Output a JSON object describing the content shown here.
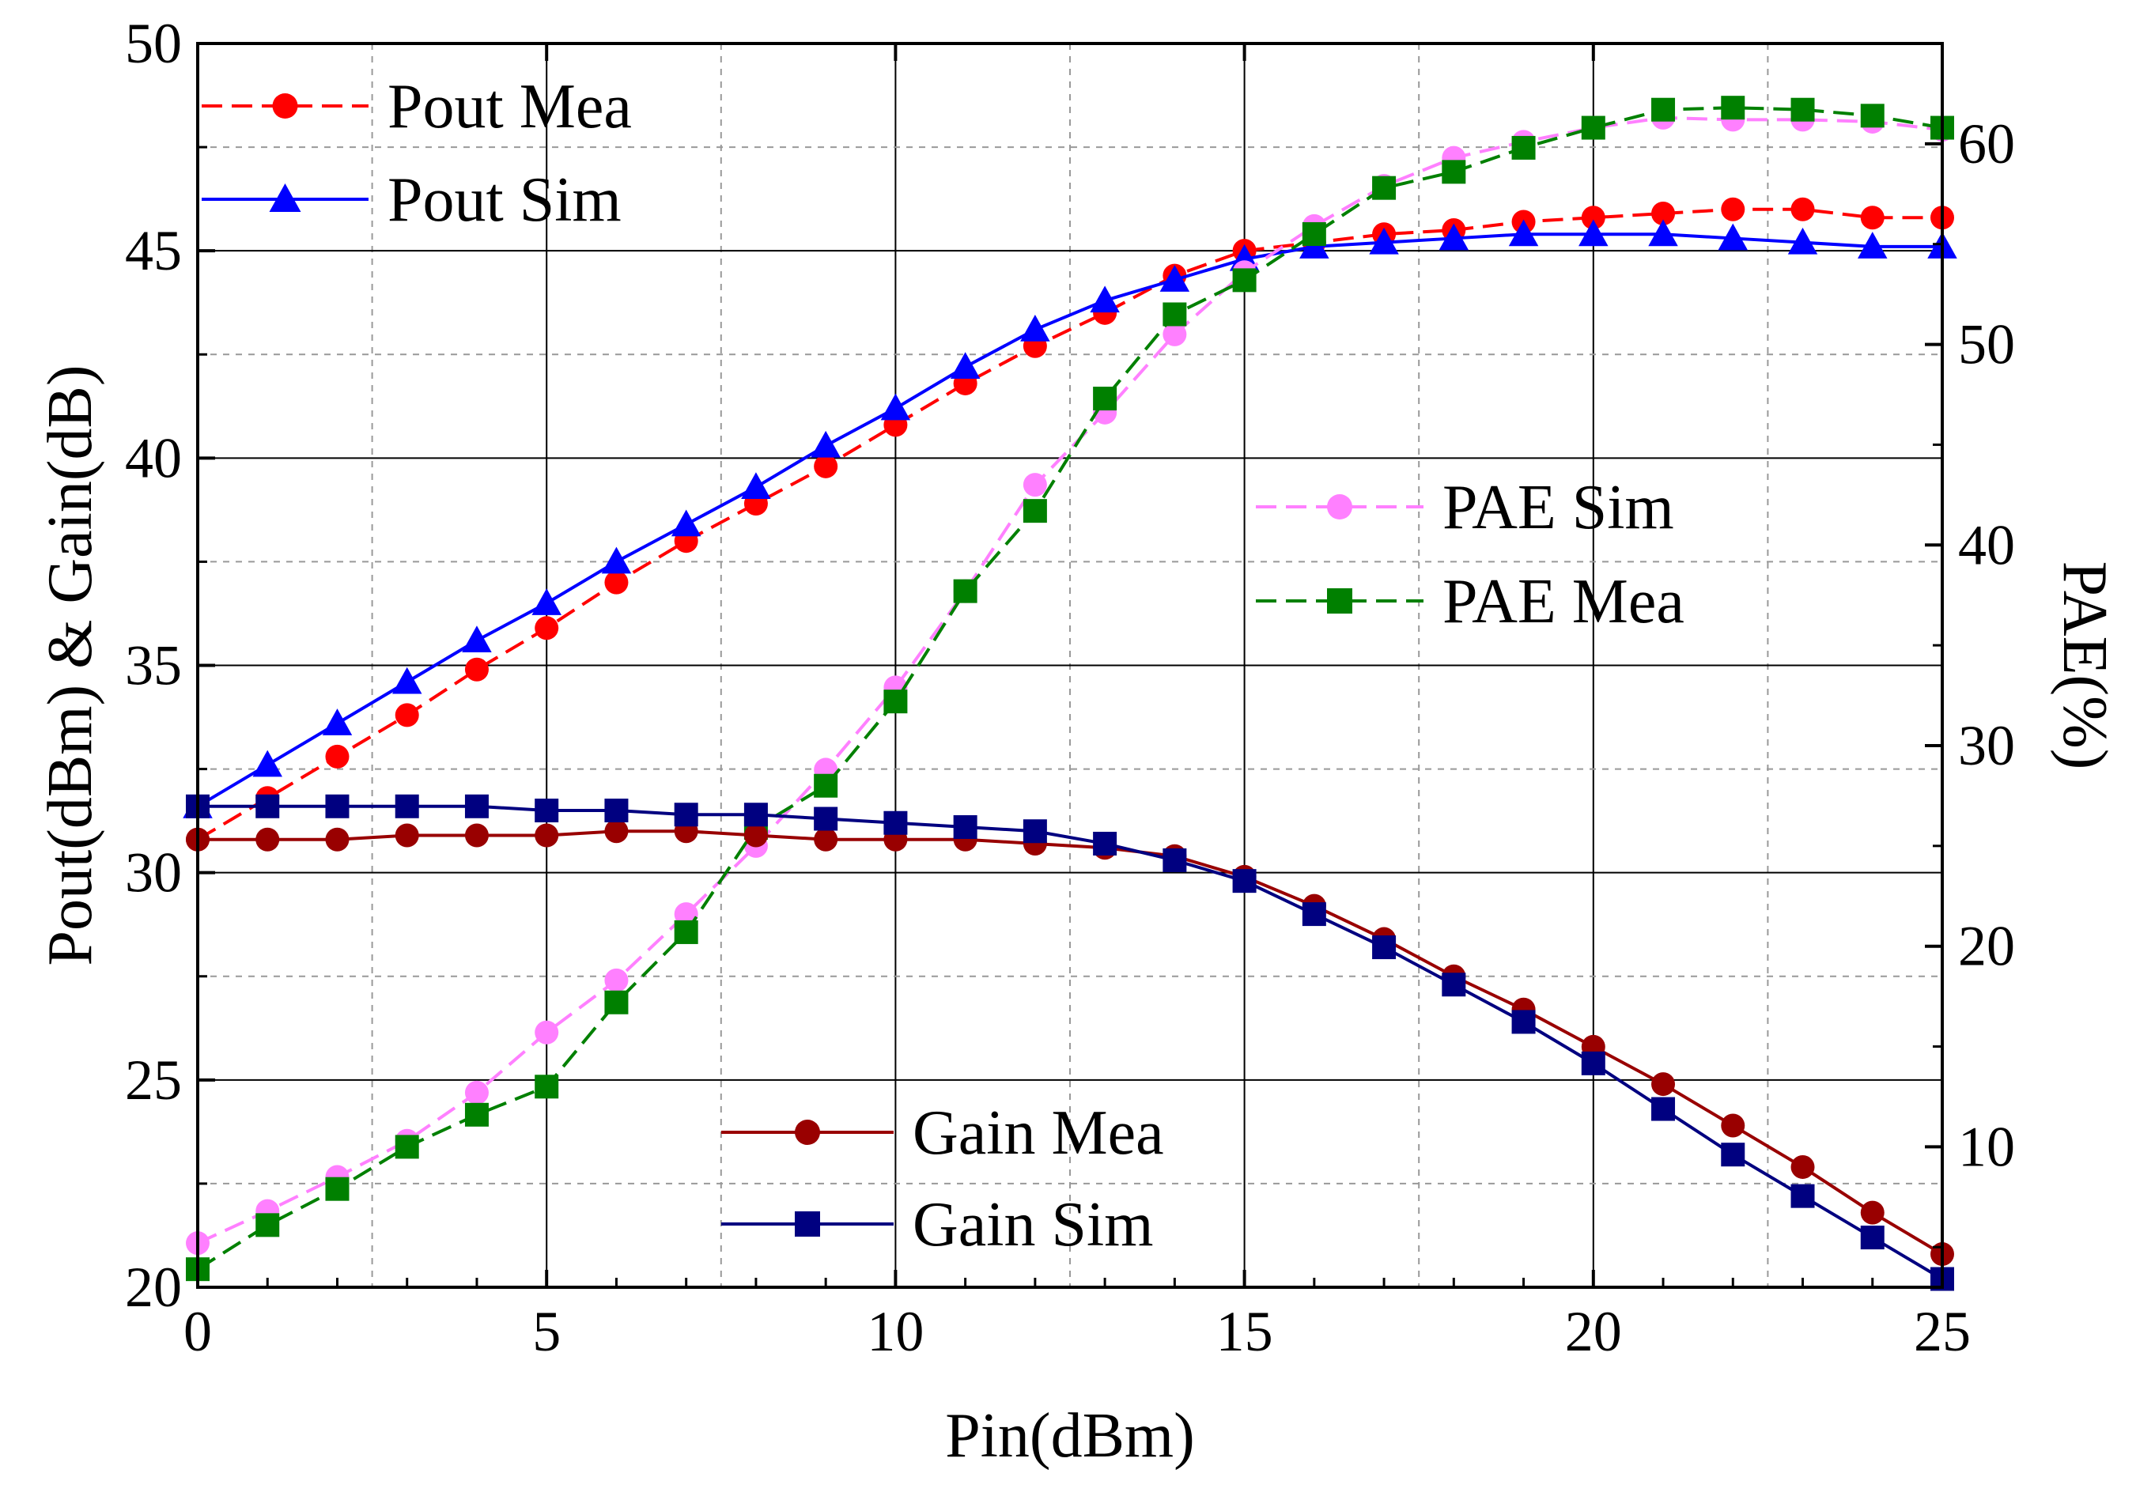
{
  "chart_data": {
    "type": "line",
    "xlabel": "Pin(dBm)",
    "ylabel_left": "Pout(dBm) & Gain(dB)",
    "ylabel_right": "PAE(%)",
    "xlim": [
      0,
      25
    ],
    "ylim_left": [
      20,
      50
    ],
    "ylim_right": [
      3,
      65
    ],
    "x_ticks": [
      "0",
      "5",
      "10",
      "15",
      "20",
      "25"
    ],
    "y_left_ticks": [
      "20",
      "25",
      "30",
      "35",
      "40",
      "45",
      "50"
    ],
    "y_right_ticks": [
      "10",
      "20",
      "30",
      "40",
      "50",
      "60"
    ],
    "grid": true,
    "x": [
      0,
      1,
      2,
      3,
      4,
      5,
      6,
      7,
      8,
      9,
      10,
      11,
      12,
      13,
      14,
      15,
      16,
      17,
      18,
      19,
      20,
      21,
      22,
      23,
      24,
      25
    ],
    "series": [
      {
        "name": "Pout Mea",
        "axis": "left",
        "color": "#ff0000",
        "marker": "circle",
        "dash": true,
        "values": [
          30.8,
          31.8,
          32.8,
          33.8,
          34.9,
          35.9,
          37.0,
          38.0,
          38.9,
          39.8,
          40.8,
          41.8,
          42.7,
          43.5,
          44.4,
          45.0,
          45.2,
          45.4,
          45.5,
          45.7,
          45.8,
          45.9,
          46.0,
          46.0,
          45.8,
          45.8
        ]
      },
      {
        "name": "Pout Sim",
        "axis": "left",
        "color": "#0000ff",
        "marker": "triangle",
        "dash": false,
        "values": [
          31.6,
          32.6,
          33.6,
          34.6,
          35.6,
          36.5,
          37.5,
          38.4,
          39.3,
          40.3,
          41.2,
          42.2,
          43.1,
          43.8,
          44.3,
          44.8,
          45.1,
          45.2,
          45.3,
          45.4,
          45.4,
          45.4,
          45.3,
          45.2,
          45.1,
          45.1
        ]
      },
      {
        "name": "PAE Sim",
        "axis": "right",
        "color": "#ff80ff",
        "marker": "circle",
        "dash": true,
        "values": [
          5.2,
          6.8,
          8.5,
          10.3,
          12.7,
          15.7,
          18.3,
          21.6,
          25.0,
          28.8,
          32.9,
          37.7,
          43.0,
          46.6,
          50.5,
          53.6,
          55.9,
          57.9,
          59.3,
          60.1,
          60.8,
          61.3,
          61.2,
          61.2,
          61.1,
          60.7
        ]
      },
      {
        "name": "PAE Mea",
        "axis": "right",
        "color": "#008000",
        "marker": "square",
        "dash": true,
        "values": [
          3.9,
          6.1,
          7.9,
          10.0,
          11.6,
          13.0,
          17.2,
          20.7,
          25.9,
          28.0,
          32.2,
          37.7,
          41.7,
          47.3,
          51.5,
          53.2,
          55.5,
          57.8,
          58.6,
          59.8,
          60.8,
          61.7,
          61.8,
          61.7,
          61.4,
          60.8
        ]
      },
      {
        "name": "Gain Mea",
        "axis": "left",
        "color": "#990000",
        "marker": "circle",
        "dash": false,
        "values": [
          30.8,
          30.8,
          30.8,
          30.9,
          30.9,
          30.9,
          31.0,
          31.0,
          30.9,
          30.8,
          30.8,
          30.8,
          30.7,
          30.6,
          30.4,
          29.9,
          29.2,
          28.4,
          27.5,
          26.7,
          25.8,
          24.9,
          23.9,
          22.9,
          21.8,
          20.8
        ]
      },
      {
        "name": "Gain Sim",
        "axis": "left",
        "color": "#000080",
        "marker": "square",
        "dash": false,
        "values": [
          31.6,
          31.6,
          31.6,
          31.6,
          31.6,
          31.5,
          31.5,
          31.4,
          31.4,
          31.3,
          31.2,
          31.1,
          31.0,
          30.7,
          30.3,
          29.8,
          29.0,
          28.2,
          27.3,
          26.4,
          25.4,
          24.3,
          23.2,
          22.2,
          21.2,
          20.2
        ]
      }
    ]
  }
}
